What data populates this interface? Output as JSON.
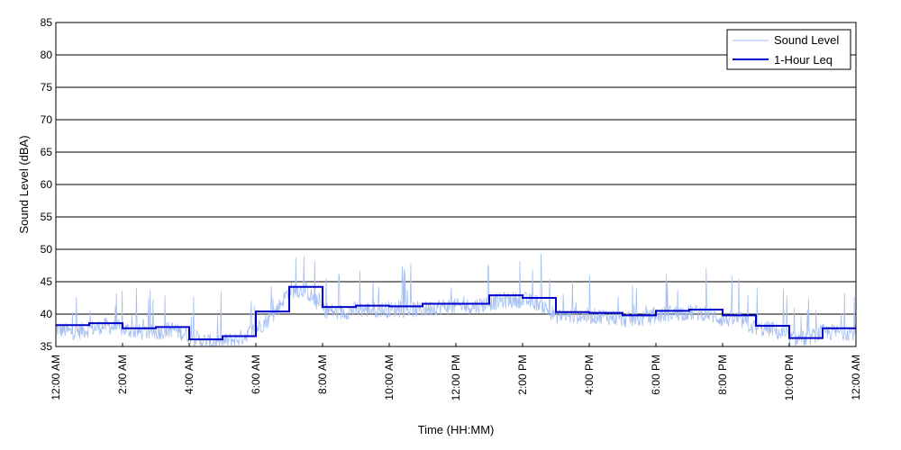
{
  "chart_data": {
    "type": "line",
    "title": "",
    "xlabel": "Time (HH:MM)",
    "ylabel": "Sound Level (dBA)",
    "ylim": [
      35,
      85
    ],
    "yticks": [
      35,
      40,
      45,
      50,
      55,
      60,
      65,
      70,
      75,
      80,
      85
    ],
    "xlim_hours": [
      0,
      24
    ],
    "xticks": [
      {
        "hour": 0,
        "label": "12:00 AM"
      },
      {
        "hour": 2,
        "label": "2:00 AM"
      },
      {
        "hour": 4,
        "label": "4:00 AM"
      },
      {
        "hour": 6,
        "label": "6:00 AM"
      },
      {
        "hour": 8,
        "label": "8:00 AM"
      },
      {
        "hour": 10,
        "label": "10:00 AM"
      },
      {
        "hour": 12,
        "label": "12:00 PM"
      },
      {
        "hour": 14,
        "label": "2:00 PM"
      },
      {
        "hour": 16,
        "label": "4:00 PM"
      },
      {
        "hour": 18,
        "label": "6:00 PM"
      },
      {
        "hour": 20,
        "label": "8:00 PM"
      },
      {
        "hour": 22,
        "label": "10:00 PM"
      },
      {
        "hour": 24,
        "label": "12:00 AM"
      }
    ],
    "grid": "horizontal",
    "legend_position": "top-right",
    "colors": {
      "sound_level": "#a6bff2",
      "leq": "#0000cc",
      "grid": "#000000"
    },
    "series": [
      {
        "name": "Sound Level",
        "style": "thin-line",
        "x_hours": [
          0,
          0.5,
          1,
          1.5,
          2,
          2.5,
          3,
          3.5,
          4,
          4.5,
          5,
          5.5,
          6,
          6.5,
          7,
          7.5,
          8,
          8.5,
          9,
          9.5,
          10,
          10.5,
          11,
          11.5,
          12,
          12.5,
          13,
          13.5,
          14,
          14.5,
          15,
          15.5,
          16,
          16.5,
          17,
          17.5,
          18,
          18.5,
          19,
          19.5,
          20,
          20.5,
          21,
          21.5,
          22,
          22.5,
          23,
          23.5,
          24
        ],
        "values": [
          38,
          37.5,
          38,
          38.5,
          38,
          37.5,
          37.5,
          38,
          37,
          36,
          36,
          36.5,
          38,
          40,
          44,
          44,
          41,
          40.5,
          41,
          41,
          41,
          41,
          41,
          41.5,
          41.5,
          41.5,
          42,
          42.5,
          42.5,
          42,
          40,
          40,
          40,
          40,
          39.5,
          39.5,
          40,
          40.5,
          40.5,
          40.5,
          39.5,
          39.5,
          38,
          38,
          36.5,
          36.5,
          37.5,
          37.5,
          37.5
        ]
      },
      {
        "name": "1-Hour Leq",
        "style": "step",
        "x_hours": [
          0,
          1,
          2,
          3,
          4,
          5,
          6,
          7,
          8,
          9,
          10,
          11,
          12,
          13,
          14,
          15,
          16,
          17,
          18,
          19,
          20,
          21,
          22,
          23
        ],
        "values": [
          38.3,
          38.6,
          37.8,
          38.0,
          36.1,
          36.6,
          40.4,
          44.2,
          41.1,
          41.3,
          41.2,
          41.6,
          41.6,
          42.9,
          42.5,
          40.3,
          40.2,
          39.8,
          40.5,
          40.7,
          39.8,
          38.2,
          36.3,
          37.8
        ]
      }
    ]
  }
}
